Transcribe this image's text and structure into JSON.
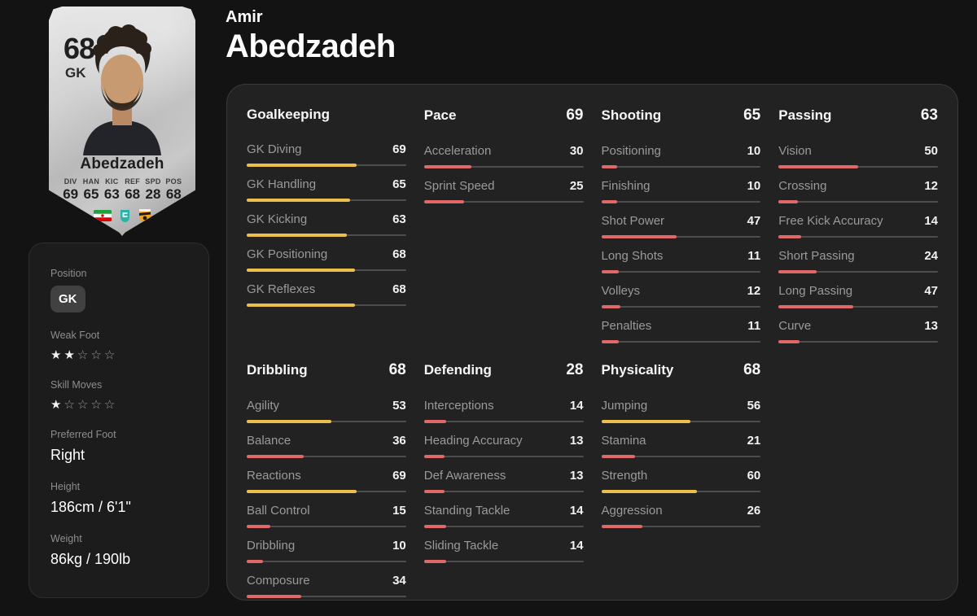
{
  "header": {
    "first_name": "Amir",
    "last_name": "Abedzadeh"
  },
  "card": {
    "rating": "68",
    "position": "GK",
    "name": "Abedzadeh",
    "mini_stats": [
      {
        "label": "DIV",
        "value": "69"
      },
      {
        "label": "HAN",
        "value": "65"
      },
      {
        "label": "KIC",
        "value": "63"
      },
      {
        "label": "REF",
        "value": "68"
      },
      {
        "label": "SPD",
        "value": "28"
      },
      {
        "label": "POS",
        "value": "68"
      }
    ],
    "badges": [
      "iran-flag",
      "league-logo",
      "club-badge"
    ]
  },
  "profile": {
    "position_label": "Position",
    "position_value": "GK",
    "weak_foot_label": "Weak Foot",
    "weak_foot_stars": 2,
    "skill_moves_label": "Skill Moves",
    "skill_moves_stars": 1,
    "preferred_foot_label": "Preferred Foot",
    "preferred_foot_value": "Right",
    "height_label": "Height",
    "height_value": "186cm / 6'1\"",
    "weight_label": "Weight",
    "weight_value": "86kg / 190lb"
  },
  "colors": {
    "bar_low": "#e26767",
    "bar_mid": "#ecbe4b",
    "bar_track": "#4d4d4d"
  },
  "bar_mid_min": 51,
  "stat_groups": [
    {
      "title": "Goalkeeping",
      "overall": "",
      "stats": [
        {
          "label": "GK Diving",
          "value": 69
        },
        {
          "label": "GK Handling",
          "value": 65
        },
        {
          "label": "GK Kicking",
          "value": 63
        },
        {
          "label": "GK Positioning",
          "value": 68
        },
        {
          "label": "GK Reflexes",
          "value": 68
        }
      ]
    },
    {
      "title": "Pace",
      "overall": "69",
      "stats": [
        {
          "label": "Acceleration",
          "value": 30
        },
        {
          "label": "Sprint Speed",
          "value": 25
        }
      ]
    },
    {
      "title": "Shooting",
      "overall": "65",
      "stats": [
        {
          "label": "Positioning",
          "value": 10
        },
        {
          "label": "Finishing",
          "value": 10
        },
        {
          "label": "Shot Power",
          "value": 47
        },
        {
          "label": "Long Shots",
          "value": 11
        },
        {
          "label": "Volleys",
          "value": 12
        },
        {
          "label": "Penalties",
          "value": 11
        }
      ]
    },
    {
      "title": "Passing",
      "overall": "63",
      "stats": [
        {
          "label": "Vision",
          "value": 50
        },
        {
          "label": "Crossing",
          "value": 12
        },
        {
          "label": "Free Kick Accuracy",
          "value": 14
        },
        {
          "label": "Short Passing",
          "value": 24
        },
        {
          "label": "Long Passing",
          "value": 47
        },
        {
          "label": "Curve",
          "value": 13
        }
      ]
    },
    {
      "title": "Dribbling",
      "overall": "68",
      "stats": [
        {
          "label": "Agility",
          "value": 53
        },
        {
          "label": "Balance",
          "value": 36
        },
        {
          "label": "Reactions",
          "value": 69
        },
        {
          "label": "Ball Control",
          "value": 15
        },
        {
          "label": "Dribbling",
          "value": 10
        },
        {
          "label": "Composure",
          "value": 34
        }
      ]
    },
    {
      "title": "Defending",
      "overall": "28",
      "stats": [
        {
          "label": "Interceptions",
          "value": 14
        },
        {
          "label": "Heading Accuracy",
          "value": 13
        },
        {
          "label": "Def Awareness",
          "value": 13
        },
        {
          "label": "Standing Tackle",
          "value": 14
        },
        {
          "label": "Sliding Tackle",
          "value": 14
        }
      ]
    },
    {
      "title": "Physicality",
      "overall": "68",
      "stats": [
        {
          "label": "Jumping",
          "value": 56
        },
        {
          "label": "Stamina",
          "value": 21
        },
        {
          "label": "Strength",
          "value": 60
        },
        {
          "label": "Aggression",
          "value": 26
        }
      ]
    }
  ]
}
